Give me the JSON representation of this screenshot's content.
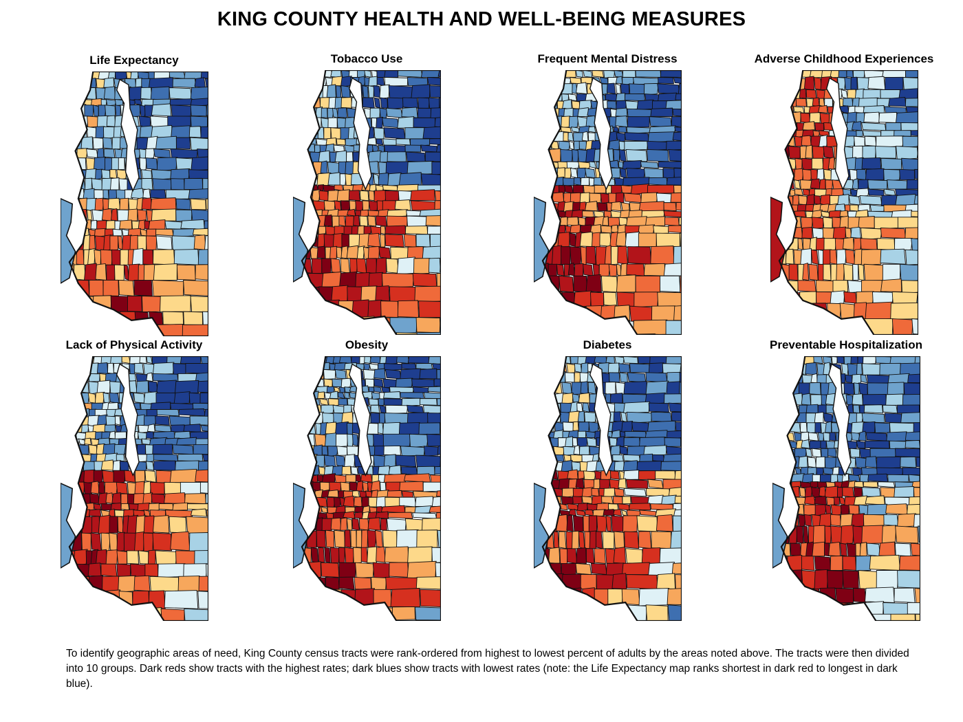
{
  "title": "KING COUNTY HEALTH AND WELL-BEING MEASURES",
  "palette": [
    "#7f0014",
    "#b2141a",
    "#d6301f",
    "#ef6a3a",
    "#f7a75c",
    "#fdd98a",
    "#dff1f6",
    "#a8d2e6",
    "#6fa3cd",
    "#3e6fb0",
    "#1e3e8f"
  ],
  "maps": [
    {
      "id": "life-expectancy",
      "title": "Life Expectancy",
      "seed": 11,
      "variant": "life"
    },
    {
      "id": "tobacco-use",
      "title": "Tobacco Use",
      "seed": 23,
      "variant": "south"
    },
    {
      "id": "frequent-mental-distress",
      "title": "Frequent Mental Distress",
      "seed": 37,
      "variant": "south"
    },
    {
      "id": "adverse-childhood-experiences",
      "title": "Adverse Childhood Experiences",
      "seed": 41,
      "variant": "mixed"
    },
    {
      "id": "lack-of-physical-activity",
      "title": "Lack of Physical Activity",
      "seed": 53,
      "variant": "south"
    },
    {
      "id": "obesity",
      "title": "Obesity",
      "seed": 67,
      "variant": "south"
    },
    {
      "id": "diabetes",
      "title": "Diabetes",
      "seed": 71,
      "variant": "south"
    },
    {
      "id": "preventable-hospitalization",
      "title": "Preventable Hospitalization",
      "seed": 89,
      "variant": "hosp"
    }
  ],
  "caption": "To identify geographic areas of need, King County census tracts were rank-ordered from highest to lowest percent of adults by the areas noted above. The tracts were then divided into 10 groups. Dark reds show tracts with the highest rates; dark blues show tracts with lowest rates (note: the Life Expectancy map ranks shortest in dark red to longest in dark blue)."
}
